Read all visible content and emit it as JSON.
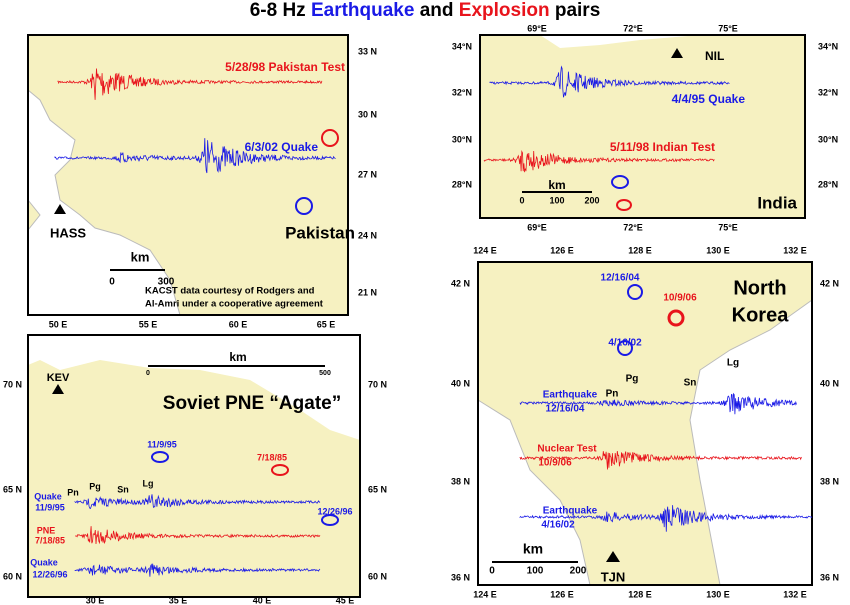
{
  "title": {
    "range": "6-8 Hz",
    "earthquake": "Earthquake",
    "and": "and",
    "explosion": "Explosion",
    "pairs": "pairs"
  },
  "pakistan": {
    "labels": [
      "5/28/98 Pakistan Test",
      "6/3/02 Quake",
      "HASS",
      "Pakistan",
      "km",
      "0",
      "300",
      "KACST data courtesy of Rodgers and",
      "Al-Amri under a cooperative agreement"
    ],
    "lat": [
      "33 N",
      "30 N",
      "27 N",
      "24 N",
      "21 N"
    ],
    "lon": [
      "50 E",
      "55 E",
      "60 E",
      "65 E"
    ]
  },
  "india": {
    "labels": [
      "NIL",
      "4/4/95 Quake",
      "5/11/98 Indian Test",
      "km",
      "0",
      "100",
      "200",
      "India"
    ],
    "lat": [
      "34°N",
      "32°N",
      "30°N",
      "28°N"
    ],
    "lon": [
      "69°E",
      "72°E",
      "75°E"
    ]
  },
  "soviet": {
    "labels": [
      "km",
      "0",
      "500",
      "KEV",
      "Soviet PNE “Agate”",
      "11/9/95",
      "7/18/85",
      "12/26/96",
      "Quake",
      "11/9/95",
      "Pn",
      "Pg",
      "Sn",
      "Lg",
      "PNE",
      "7/18/85",
      "Quake",
      "12/26/96"
    ],
    "lat": [
      "70 N",
      "65 N",
      "60 N"
    ],
    "lon": [
      "30 E",
      "35 E",
      "40 E",
      "45 E"
    ]
  },
  "north_korea": {
    "labels": [
      "12/16/04",
      "10/9/06",
      "4/16/02",
      "North",
      "Korea",
      "Pg",
      "Lg",
      "Pn",
      "Sn",
      "Earthquake",
      "12/16/04",
      "Nuclear Test",
      "10/9/06",
      "Earthquake",
      "4/16/02",
      "km",
      "0",
      "100",
      "200",
      "TJN"
    ],
    "lat": [
      "42 N",
      "40 N",
      "38 N",
      "36 N"
    ],
    "lon": [
      "124 E",
      "126 E",
      "128 E",
      "130 E",
      "132 E"
    ]
  }
}
